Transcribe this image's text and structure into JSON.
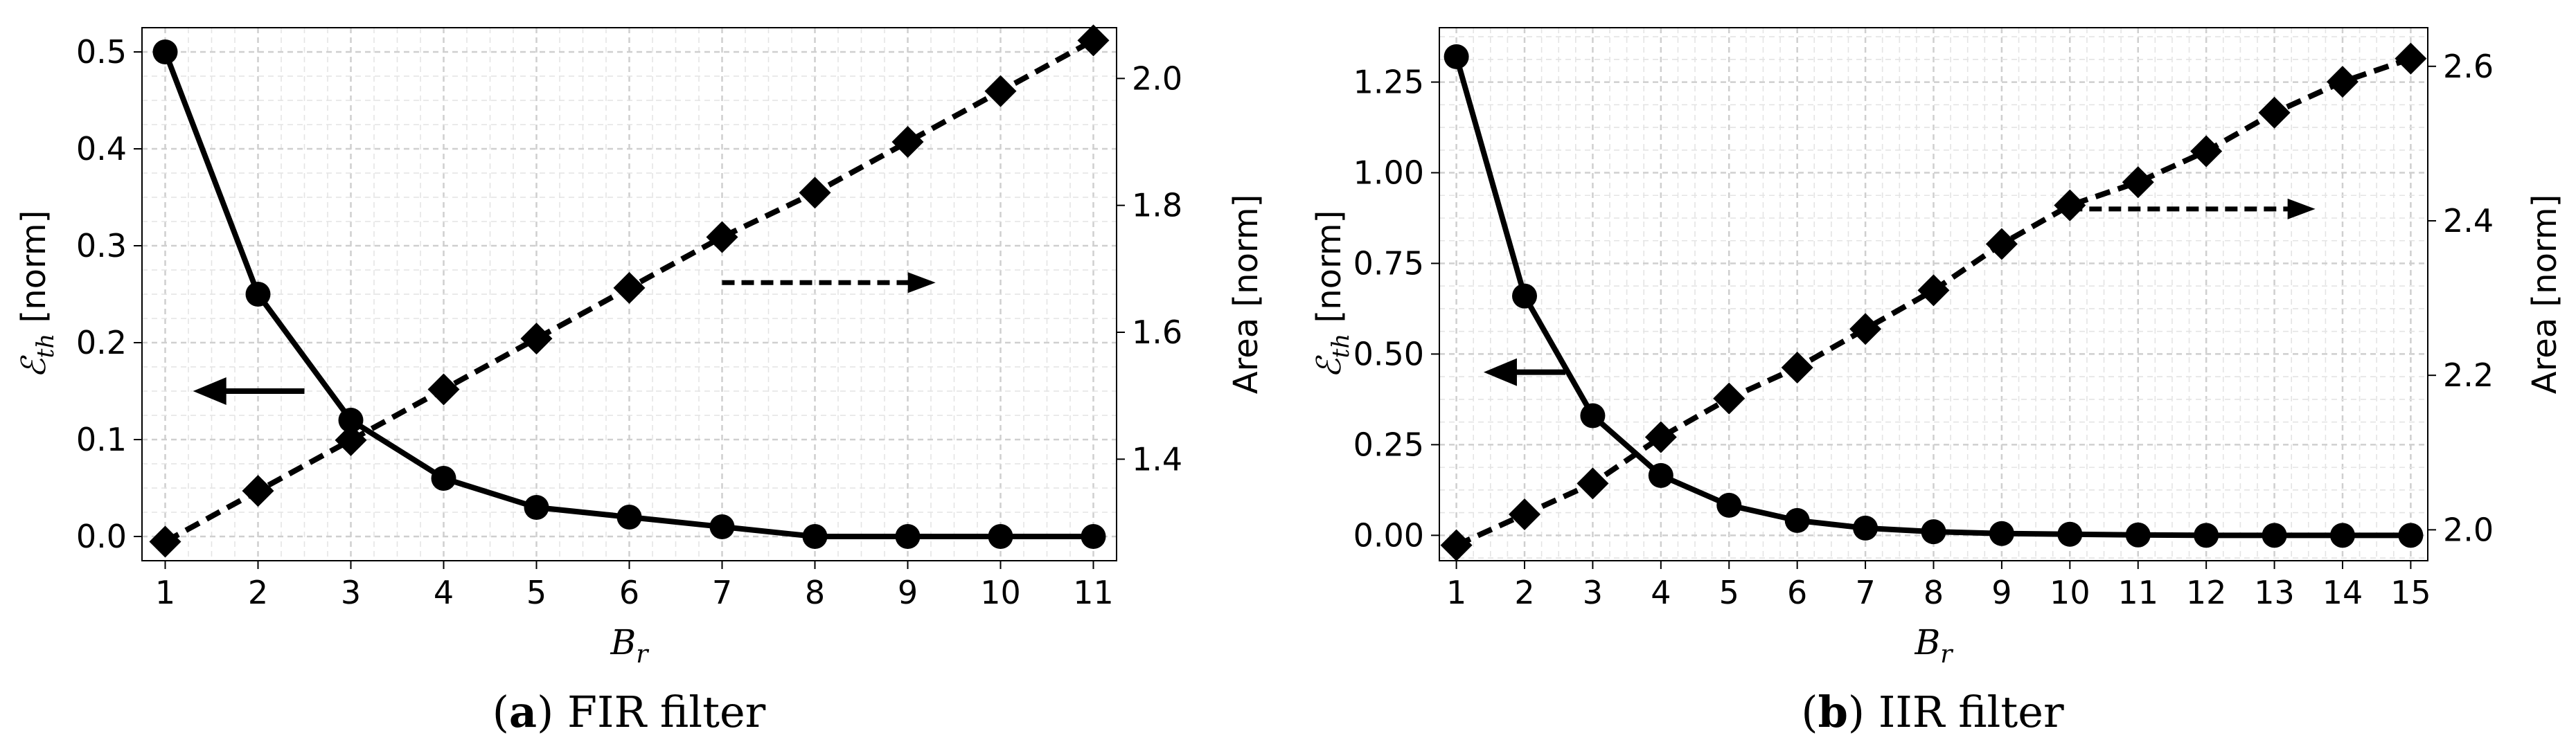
{
  "chart_data": [
    {
      "type": "line",
      "caption_letter": "a",
      "caption_text": "FIR filter",
      "xlabel": "B",
      "xlabel_sub": "r",
      "ylabel": "ℰ",
      "ylabel_sub": "th",
      "ylabel_suffix": "[norm]",
      "y2label": "Area [norm]",
      "x": [
        1,
        2,
        3,
        4,
        5,
        6,
        7,
        8,
        9,
        10,
        11
      ],
      "xticks": [
        "1",
        "2",
        "3",
        "4",
        "5",
        "6",
        "7",
        "8",
        "9",
        "10",
        "11"
      ],
      "xlim": [
        0.75,
        11.25
      ],
      "ylim": [
        -0.025,
        0.525
      ],
      "yticks": [
        "0.0",
        "0.1",
        "0.2",
        "0.3",
        "0.4",
        "0.5"
      ],
      "ytick_values": [
        0.0,
        0.1,
        0.2,
        0.3,
        0.4,
        0.5
      ],
      "y2lim": [
        1.24,
        2.08
      ],
      "y2ticks": [
        "1.4",
        "1.6",
        "1.8",
        "2.0"
      ],
      "y2tick_values": [
        1.4,
        1.6,
        1.8,
        2.0
      ],
      "series": [
        {
          "axis": "left",
          "style": "solid",
          "marker": "circle",
          "values": [
            0.5,
            0.25,
            0.12,
            0.06,
            0.03,
            0.02,
            0.01,
            0.0,
            0.0,
            0.0,
            0.0
          ]
        },
        {
          "axis": "right",
          "style": "dashed",
          "marker": "diamond",
          "values": [
            1.27,
            1.35,
            1.43,
            1.51,
            1.59,
            1.67,
            1.75,
            1.82,
            1.9,
            1.98,
            2.06
          ]
        }
      ],
      "arrows": [
        {
          "direction": "left",
          "style": "solid",
          "x_from": 2.5,
          "x_to": 1.3,
          "y": 0.15,
          "axis": "left"
        },
        {
          "direction": "right",
          "style": "dashed",
          "x_from": 7.0,
          "x_to": 9.3,
          "y": 0.262,
          "axis": "left"
        }
      ],
      "grid": true
    },
    {
      "type": "line",
      "caption_letter": "b",
      "caption_text": "IIR filter",
      "xlabel": "B",
      "xlabel_sub": "r",
      "ylabel": "ℰ",
      "ylabel_sub": "th",
      "ylabel_suffix": "[norm]",
      "y2label": "Area [norm]",
      "x": [
        1,
        2,
        3,
        4,
        5,
        6,
        7,
        8,
        9,
        10,
        11,
        12,
        13,
        14,
        15
      ],
      "xticks": [
        "1",
        "2",
        "3",
        "4",
        "5",
        "6",
        "7",
        "8",
        "9",
        "10",
        "11",
        "12",
        "13",
        "14",
        "15"
      ],
      "xlim": [
        0.75,
        15.25
      ],
      "ylim": [
        -0.07,
        1.4
      ],
      "yticks": [
        "0.00",
        "0.25",
        "0.50",
        "0.75",
        "1.00",
        "1.25"
      ],
      "ytick_values": [
        0.0,
        0.25,
        0.5,
        0.75,
        1.0,
        1.25
      ],
      "y2lim": [
        1.96,
        2.65
      ],
      "y2ticks": [
        "2.0",
        "2.2",
        "2.4",
        "2.6"
      ],
      "y2tick_values": [
        2.0,
        2.2,
        2.4,
        2.6
      ],
      "series": [
        {
          "axis": "left",
          "style": "solid",
          "marker": "circle",
          "values": [
            1.32,
            0.66,
            0.33,
            0.165,
            0.083,
            0.041,
            0.02,
            0.01,
            0.005,
            0.003,
            0.001,
            0.0,
            0.0,
            0.0,
            0.0
          ]
        },
        {
          "axis": "right",
          "style": "dashed",
          "marker": "diamond",
          "values": [
            1.98,
            2.02,
            2.06,
            2.12,
            2.17,
            2.21,
            2.26,
            2.31,
            2.37,
            2.42,
            2.45,
            2.49,
            2.54,
            2.58,
            2.61
          ]
        }
      ],
      "arrows": [
        {
          "direction": "left",
          "style": "solid",
          "x_from": 2.6,
          "x_to": 1.4,
          "y": 0.45,
          "axis": "left"
        },
        {
          "direction": "right",
          "style": "dashed",
          "x_from": 10.0,
          "x_to": 13.6,
          "y": 0.9,
          "axis": "left"
        }
      ],
      "grid": true
    }
  ]
}
